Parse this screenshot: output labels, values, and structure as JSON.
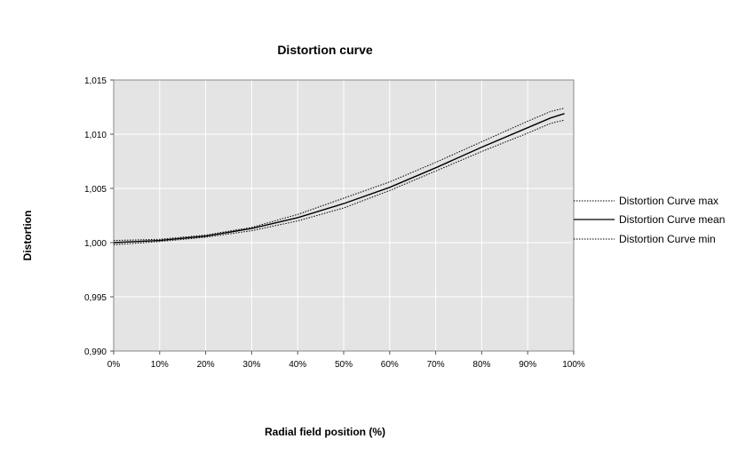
{
  "chart_data": {
    "type": "line",
    "title": "Distortion curve",
    "xlabel": "Radial field position (%)",
    "ylabel": "Distortion",
    "x": [
      0,
      10,
      20,
      30,
      40,
      50,
      60,
      70,
      80,
      90,
      95,
      98
    ],
    "xlim": [
      0,
      100
    ],
    "ylim": [
      0.99,
      1.015
    ],
    "x_ticks": [
      "0%",
      "10%",
      "20%",
      "30%",
      "40%",
      "50%",
      "60%",
      "70%",
      "80%",
      "90%",
      "100%"
    ],
    "y_ticks": [
      "0,990",
      "0,995",
      "1,000",
      "1,005",
      "1,010",
      "1,015"
    ],
    "grid": true,
    "legend_position": "right",
    "colors": {
      "plot_bg": "#e4e4e4",
      "grid": "#ffffff",
      "line": "#000000"
    },
    "series": [
      {
        "name": "Distortion Curve max",
        "style": "dotted",
        "values": [
          1.0002,
          1.0003,
          1.0007,
          1.0014,
          1.0026,
          1.0041,
          1.0056,
          1.0074,
          1.0093,
          1.0112,
          1.0121,
          1.0124
        ]
      },
      {
        "name": "Distortion Curve mean",
        "style": "solid",
        "values": [
          1.0,
          1.0002,
          1.0006,
          1.0013,
          1.0023,
          1.0036,
          1.0051,
          1.0069,
          1.0088,
          1.0106,
          1.0115,
          1.0119
        ]
      },
      {
        "name": "Distortion Curve min",
        "style": "dotted",
        "values": [
          0.9998,
          1.0001,
          1.0005,
          1.0011,
          1.002,
          1.0032,
          1.0048,
          1.0066,
          1.0084,
          1.0101,
          1.011,
          1.0113
        ]
      }
    ]
  }
}
